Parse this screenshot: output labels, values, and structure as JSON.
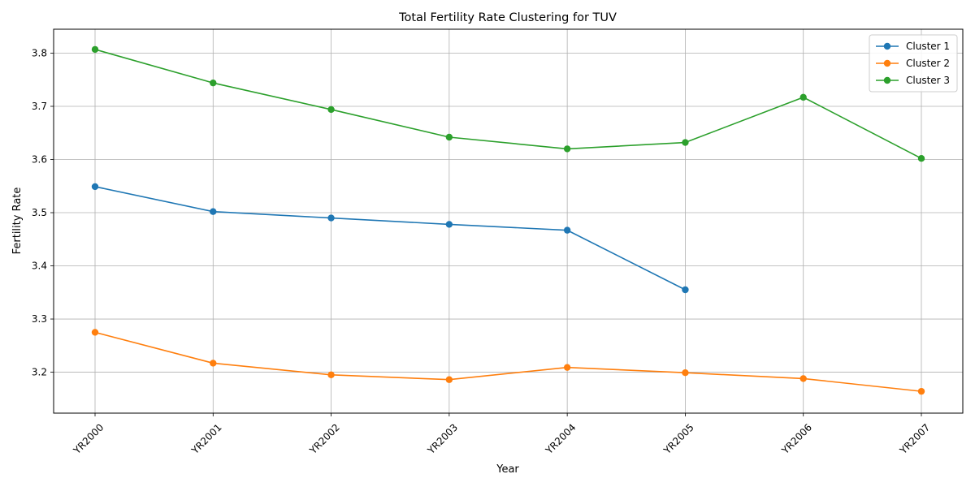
{
  "chart_data": {
    "type": "line",
    "title": "Total Fertility Rate Clustering for TUV",
    "xlabel": "Year",
    "ylabel": "Fertility Rate",
    "categories": [
      "YR2000",
      "YR2001",
      "YR2002",
      "YR2003",
      "YR2004",
      "YR2005",
      "YR2006",
      "YR2007"
    ],
    "ylim": [
      3.123,
      3.845
    ],
    "yticks": [
      3.2,
      3.3,
      3.4,
      3.5,
      3.6,
      3.7,
      3.8
    ],
    "ytick_labels": [
      "3.2",
      "3.3",
      "3.4",
      "3.5",
      "3.6",
      "3.7",
      "3.8"
    ],
    "grid": true,
    "marker": "circle",
    "legend_position": "top-right",
    "series": [
      {
        "name": "Cluster 1",
        "color": "#1f77b4",
        "values": [
          3.549,
          3.502,
          3.49,
          3.478,
          3.467,
          3.355,
          null,
          null
        ]
      },
      {
        "name": "Cluster 2",
        "color": "#ff7f0e",
        "values": [
          3.275,
          3.217,
          3.195,
          3.186,
          3.209,
          3.199,
          3.188,
          3.164
        ]
      },
      {
        "name": "Cluster 3",
        "color": "#2ca02c",
        "values": [
          3.807,
          3.744,
          3.694,
          3.642,
          3.62,
          3.632,
          3.717,
          3.602
        ]
      }
    ]
  }
}
